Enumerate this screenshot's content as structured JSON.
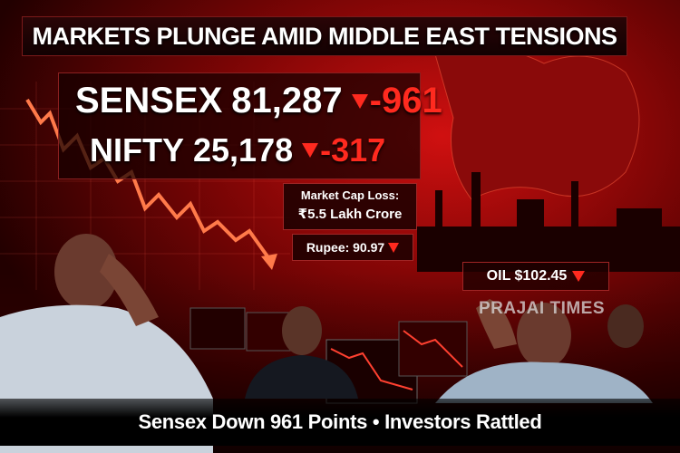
{
  "headline": "MARKETS PLUNGE AMID MIDDLE EAST TENSIONS",
  "indices": [
    {
      "name": "SENSEX",
      "value": "81,287",
      "change": "-961"
    },
    {
      "name": "NIFTY",
      "value": "25,178",
      "change": "-317"
    }
  ],
  "market_cap": {
    "label": "Market Cap Loss:",
    "value": "₹5.5 Lakh Crore"
  },
  "rupee": "Rupee: 90.97",
  "oil": "OIL $102.45",
  "watermark": "PRAJAI TIMES",
  "footer": "Sensex Down 961 Points • Investors Rattled"
}
